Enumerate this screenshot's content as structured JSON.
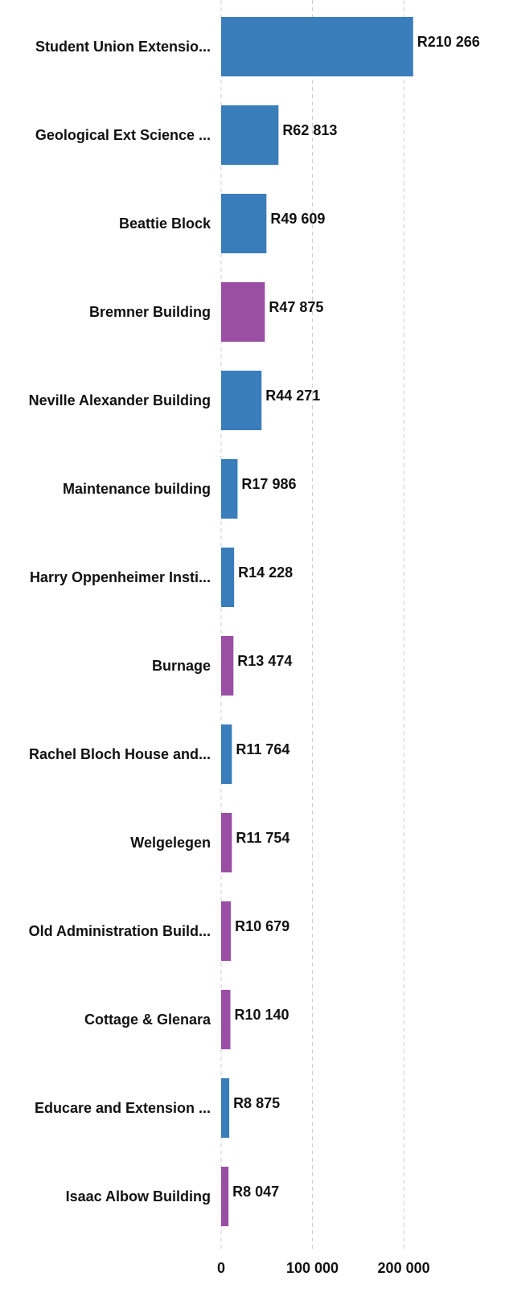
{
  "chart_data": {
    "type": "hbar",
    "categories": [
      "Student Union Extensio...",
      "Geological Ext Science ...",
      "Beattie Block",
      "Bremner Building",
      "Neville Alexander Building",
      "Maintenance building",
      "Harry Oppenheimer Insti...",
      "Burnage",
      "Rachel Bloch House and...",
      "Welgelegen",
      "Old Administration Build...",
      "Cottage & Glenara",
      "Educare and Extension ...",
      "Isaac Albow Building"
    ],
    "values": [
      210266,
      62813,
      49609,
      47875,
      44271,
      17986,
      14228,
      13474,
      11764,
      11754,
      10679,
      10140,
      8875,
      8047
    ],
    "value_labels": [
      "R210 266",
      "R62 813",
      "R49 609",
      "R47 875",
      "R44 271",
      "R17 986",
      "R14 228",
      "R13 474",
      "R11 764",
      "R11 754",
      "R10 679",
      "R10 140",
      "R8 875",
      "R8 047"
    ],
    "colors": [
      "#3a7dbb",
      "#3a7dbb",
      "#3a7dbb",
      "#9a4fa5",
      "#3a7dbb",
      "#3a7dbb",
      "#3a7dbb",
      "#9a4fa5",
      "#3a7dbb",
      "#9a4fa5",
      "#9a4fa5",
      "#9a4fa5",
      "#3a7dbb",
      "#9a4fa5"
    ],
    "xlim": [
      0,
      310000
    ],
    "xticks": [
      0,
      {
        "value": 100000,
        "label": "100 000"
      },
      {
        "value": 200000,
        "label": "200 000"
      }
    ],
    "grid": true
  }
}
